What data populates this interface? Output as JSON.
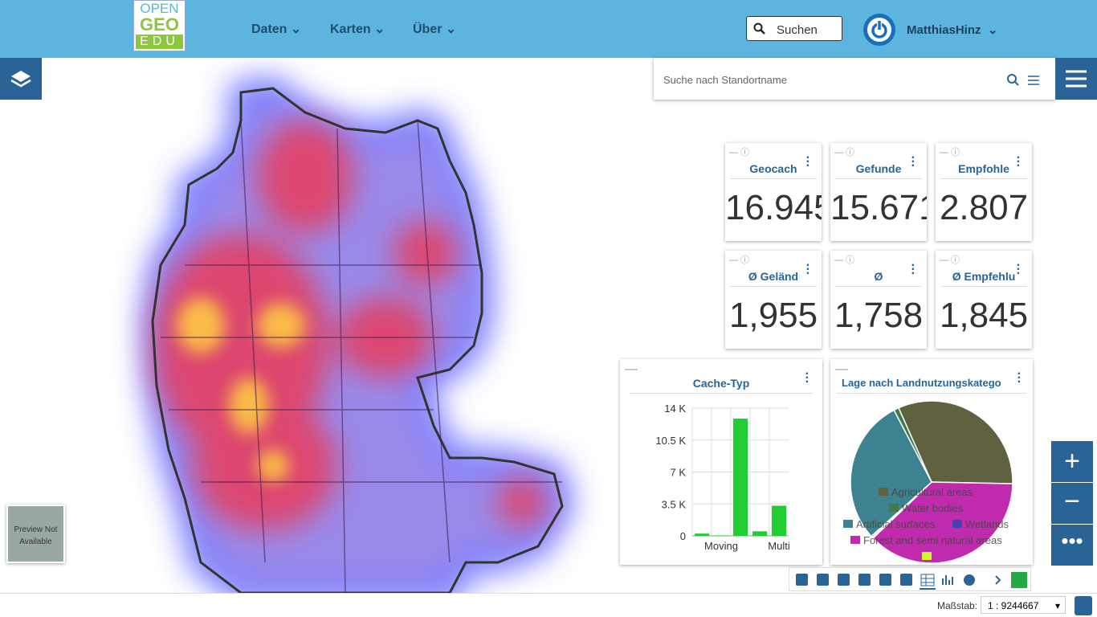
{
  "header": {
    "logo": {
      "line1": "OPEN",
      "line2": "GEO",
      "line3": "EDU"
    },
    "nav": [
      "Daten",
      "Karten",
      "Über"
    ],
    "search": "Suchen",
    "user": "MatthiasHinz"
  },
  "location_search": "Suche nach Standortname",
  "kpis": [
    {
      "title": "Geocach",
      "value": "16.945"
    },
    {
      "title": "Gefunde",
      "value": "15.671"
    },
    {
      "title": "Empfohle",
      "value": "2.807"
    },
    {
      "title": "Ø Geländ",
      "value": "1,955"
    },
    {
      "title": "Ø",
      "value": "1,758"
    },
    {
      "title": "Ø Empfehlu",
      "value": "1,845"
    }
  ],
  "preview": "Preview Not Available",
  "scale": {
    "label": "Maßstab:",
    "value": "1 : 9244667"
  },
  "chart_data": [
    {
      "type": "bar",
      "title": "Cache-Typ",
      "categories": [
        null,
        "Moving",
        null,
        null,
        "Multi"
      ],
      "values": [
        250,
        50,
        12850,
        500,
        3300
      ],
      "color": "#22cc33",
      "ylim": [
        0,
        14000
      ],
      "yticks": [
        0,
        {
          "value": 3500,
          "label": "3.5 K"
        },
        {
          "value": 7000,
          "label": "7 K"
        },
        {
          "value": 10500,
          "label": "10.5 K"
        },
        {
          "value": 14000,
          "label": "14 K"
        }
      ],
      "grid": true
    },
    {
      "type": "pie",
      "title": "Lage nach Landnutzungskatego",
      "categories": [
        "Agricultural areas",
        "Water bodies",
        "Artificial surfaces",
        "Wetlands",
        "Forest and semi natural areas",
        null
      ],
      "values": [
        32,
        1,
        29,
        0.3,
        37.5,
        0.2
      ],
      "colors": [
        "#5f6140",
        "#3f7a4a",
        "#3d8290",
        "#4a3fae",
        "#c02aae",
        "#d6f530"
      ]
    }
  ]
}
